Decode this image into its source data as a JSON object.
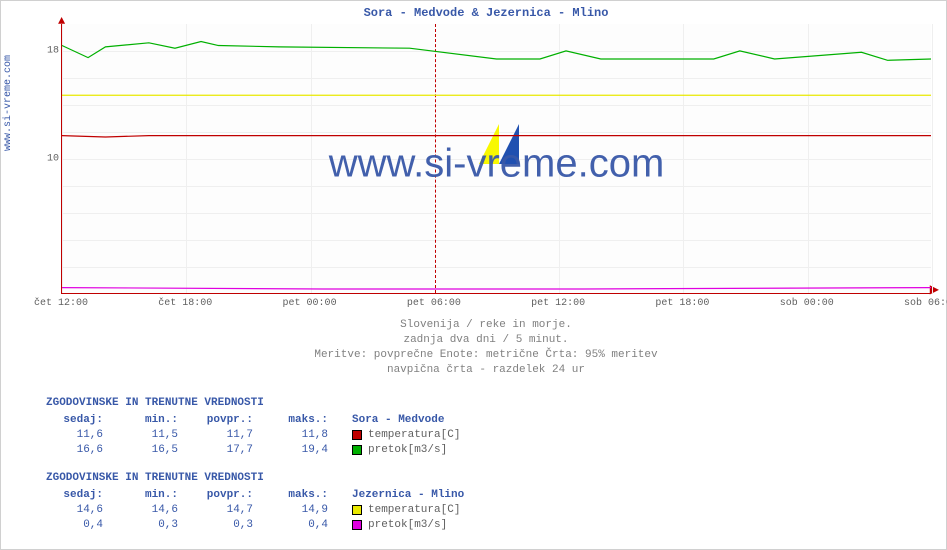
{
  "title": "Sora - Medvode & Jezernica - Mlino",
  "y_axis_label": "www.si-vreme.com",
  "watermark_text": "www.si-vreme.com",
  "caption": {
    "line1": "Slovenija / reke in morje.",
    "line2": "zadnja dva dni / 5 minut.",
    "line3": "Meritve: povprečne  Enote: metrične  Črta: 95% meritev",
    "line4": "navpična črta - razdelek 24 ur"
  },
  "colors": {
    "title": "#3858a8",
    "axis": "#c00000",
    "grid": "#efefef",
    "text_muted": "#808080",
    "text_tick": "#606060",
    "bg": "#ffffff",
    "series_temp1": "#c00000",
    "series_flow1": "#00b000",
    "series_temp2": "#e8e800",
    "series_flow2": "#e000e0",
    "wm_logo_y": "#f8f800",
    "wm_logo_b": "#2050b0"
  },
  "chart": {
    "type": "line",
    "ylim": [
      0,
      20
    ],
    "yticks": [
      10,
      18
    ],
    "xticks": [
      "čet 12:00",
      "čet 18:00",
      "pet 00:00",
      "pet 06:00",
      "pet 12:00",
      "pet 18:00",
      "sob 00:00",
      "sob 06:00"
    ],
    "xmajor_index": 3,
    "grid_color": "#efefef",
    "background_color": "#fdfdfd",
    "line_width": 1.2,
    "font_size_ticks": 10,
    "font_size_title": 12,
    "series": {
      "temp1": {
        "color": "#c00000",
        "points": [
          [
            0,
            11.7
          ],
          [
            0.05,
            11.6
          ],
          [
            0.1,
            11.7
          ],
          [
            0.3,
            11.7
          ],
          [
            0.5,
            11.7
          ],
          [
            0.7,
            11.7
          ],
          [
            1.0,
            11.7
          ]
        ]
      },
      "flow1": {
        "color": "#00b000",
        "points": [
          [
            0,
            18.4
          ],
          [
            0.03,
            17.5
          ],
          [
            0.05,
            18.3
          ],
          [
            0.1,
            18.6
          ],
          [
            0.13,
            18.2
          ],
          [
            0.16,
            18.7
          ],
          [
            0.18,
            18.4
          ],
          [
            0.25,
            18.3
          ],
          [
            0.4,
            18.2
          ],
          [
            0.5,
            17.4
          ],
          [
            0.55,
            17.4
          ],
          [
            0.58,
            18.0
          ],
          [
            0.62,
            17.4
          ],
          [
            0.75,
            17.4
          ],
          [
            0.78,
            18.0
          ],
          [
            0.82,
            17.4
          ],
          [
            0.92,
            17.9
          ],
          [
            0.95,
            17.3
          ],
          [
            1.0,
            17.4
          ]
        ]
      },
      "temp2": {
        "color": "#e8e800",
        "points": [
          [
            0,
            14.7
          ],
          [
            0.2,
            14.7
          ],
          [
            0.4,
            14.7
          ],
          [
            0.6,
            14.7
          ],
          [
            0.8,
            14.7
          ],
          [
            1.0,
            14.7
          ]
        ]
      },
      "flow2": {
        "color": "#e000e0",
        "points": [
          [
            0,
            0.4
          ],
          [
            0.3,
            0.3
          ],
          [
            0.6,
            0.3
          ],
          [
            1.0,
            0.4
          ]
        ]
      }
    }
  },
  "stats": [
    {
      "heading": "ZGODOVINSKE IN TRENUTNE VREDNOSTI",
      "name": "Sora - Medvode",
      "cols": [
        "sedaj:",
        "min.:",
        "povpr.:",
        "maks.:"
      ],
      "rows": [
        {
          "vals": [
            "11,6",
            "11,5",
            "11,7",
            "11,8"
          ],
          "swatch": "#c00000",
          "label": "temperatura[C]"
        },
        {
          "vals": [
            "16,6",
            "16,5",
            "17,7",
            "19,4"
          ],
          "swatch": "#00b000",
          "label": "pretok[m3/s]"
        }
      ]
    },
    {
      "heading": "ZGODOVINSKE IN TRENUTNE VREDNOSTI",
      "name": "Jezernica - Mlino",
      "cols": [
        "sedaj:",
        "min.:",
        "povpr.:",
        "maks.:"
      ],
      "rows": [
        {
          "vals": [
            "14,6",
            "14,6",
            "14,7",
            "14,9"
          ],
          "swatch": "#e8e800",
          "label": "temperatura[C]"
        },
        {
          "vals": [
            "0,4",
            "0,3",
            "0,3",
            "0,4"
          ],
          "swatch": "#e000e0",
          "label": "pretok[m3/s]"
        }
      ]
    }
  ]
}
